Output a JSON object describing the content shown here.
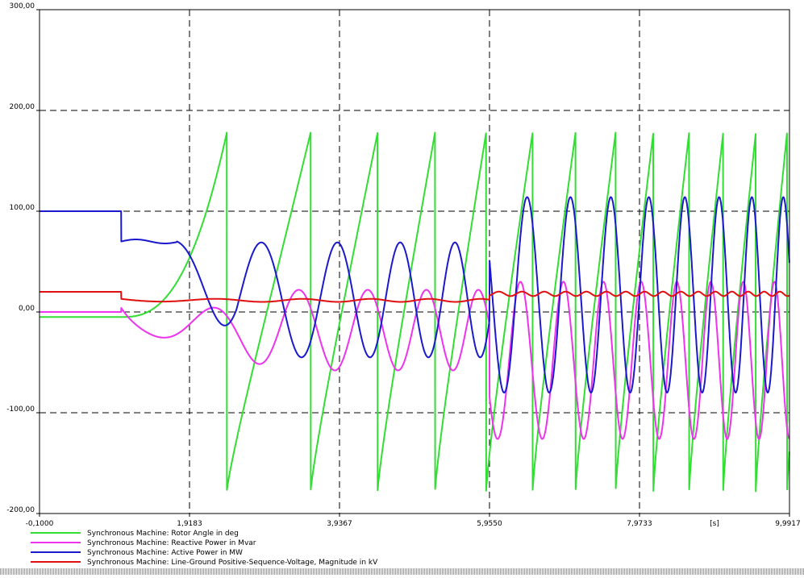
{
  "chart_data": {
    "type": "line",
    "xlabel": "",
    "xunit_label": "[s]",
    "ylabel": "",
    "xlim": [
      -0.1,
      9.9917
    ],
    "ylim": [
      -200,
      300
    ],
    "x_ticks": [
      -0.1,
      1.9183,
      3.9367,
      5.955,
      7.9733,
      9.9917
    ],
    "x_tick_labels": [
      "-0,1000",
      "1,9183",
      "3,9367",
      "5,9550",
      "7,9733",
      "9,9917"
    ],
    "y_ticks": [
      -200,
      -100,
      0,
      100,
      200,
      300
    ],
    "y_tick_labels": [
      "-200,00",
      "-100,00",
      "0,00",
      "100,00",
      "200,00",
      "300,00"
    ],
    "grid": true,
    "legend_position": "bottom-left",
    "series": [
      {
        "name": "Synchronous Machine: Rotor Angle in deg",
        "color": "#33dd33",
        "description": "starts at -5 deg, rises after fault at t=1.0 s, then pole-slips: sawtooth between about -180 and +180 deg with decreasing period",
        "values": [
          [
            -0.1,
            -5
          ],
          [
            1.0,
            -5
          ],
          [
            1.9,
            60
          ],
          [
            2.4,
            178
          ],
          [
            2.4,
            -178
          ],
          [
            2.8,
            -20
          ],
          [
            3.1,
            178
          ],
          [
            3.1,
            -178
          ],
          [
            9.99,
            -170
          ]
        ]
      },
      {
        "name": "Synchronous Machine: Reactive Power in Mvar",
        "color": "#ee33ee",
        "description": "0 Mvar before 1.0 s, jumps to 22, then oscillates with growing amplitude; amplitude about -125 to +30 after 5.95 s",
        "values": [
          [
            -0.1,
            0
          ],
          [
            1.0,
            0
          ],
          [
            1.0,
            22
          ],
          [
            2.2,
            -60
          ],
          [
            2.6,
            28
          ],
          [
            9.99,
            -125
          ]
        ]
      },
      {
        "name": "Synchronous Machine: Active Power in MW",
        "color": "#1a1acc",
        "description": "100 MW before 1.0 s, drops to 70, then oscillates with growing amplitude; about -80 to +115 after 5.95 s",
        "values": [
          [
            -0.1,
            100
          ],
          [
            1.0,
            100
          ],
          [
            1.0,
            70
          ],
          [
            1.6,
            70
          ],
          [
            2.4,
            -45
          ],
          [
            2.7,
            68
          ],
          [
            9.99,
            115
          ]
        ]
      },
      {
        "name": "Synchronous Machine: Line-Ground Positive-Sequence-Voltage, Magnitude in kV",
        "color": "#e01010",
        "description": "20 kV before 1.0 s, then about 10-13 kV with small ripple, jumping to about 18 kV after 5.95 s",
        "values": [
          [
            -0.1,
            20
          ],
          [
            1.0,
            20
          ],
          [
            1.0,
            13
          ],
          [
            2.0,
            10
          ],
          [
            5.95,
            12
          ],
          [
            5.95,
            18
          ],
          [
            9.99,
            18
          ]
        ]
      }
    ]
  }
}
